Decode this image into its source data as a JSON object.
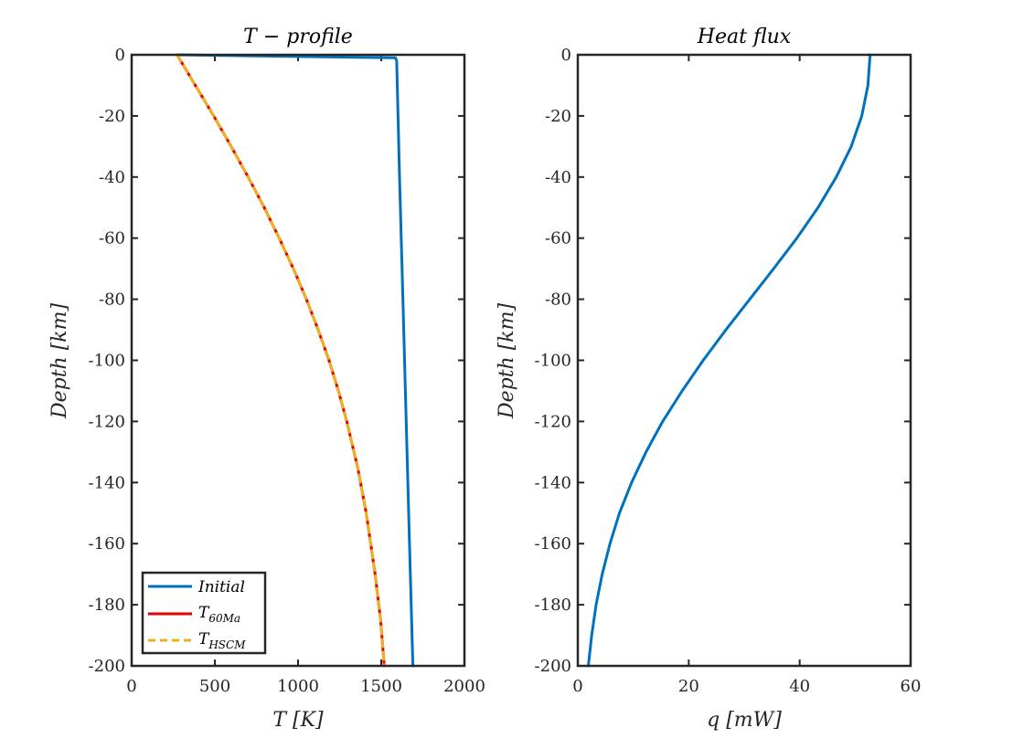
{
  "chart_data": [
    {
      "type": "line",
      "title": "T − profile",
      "xlabel": "T [K]",
      "ylabel": "Depth [km]",
      "xlim": [
        0,
        2000
      ],
      "ylim": [
        -200,
        0
      ],
      "xticks": [
        "0",
        "500",
        "1000",
        "1500",
        "2000"
      ],
      "yticks": [
        "0",
        "-20",
        "-40",
        "-60",
        "-80",
        "-100",
        "-120",
        "-140",
        "-160",
        "-180",
        "-200"
      ],
      "grid": false,
      "legend_position": "bottom-left",
      "series": [
        {
          "name": "Initial",
          "color": "#0072BD",
          "dash": "solid",
          "points": [
            [
              273,
              0
            ],
            [
              1585,
              -1
            ],
            [
              1593,
              -2
            ],
            [
              1610,
              -40
            ],
            [
              1630,
              -80
            ],
            [
              1650,
              -120
            ],
            [
              1670,
              -160
            ],
            [
              1690,
              -200
            ]
          ]
        },
        {
          "name": "T60Ma",
          "name_base": "T",
          "name_sub": "60Ma",
          "color": "#E00000",
          "dash": "solid",
          "points": [
            [
              273,
              0
            ],
            [
              383,
              -10
            ],
            [
              493,
              -20
            ],
            [
              598,
              -30
            ],
            [
              700,
              -40
            ],
            [
              797,
              -50
            ],
            [
              887,
              -60
            ],
            [
              972,
              -70
            ],
            [
              1050,
              -80
            ],
            [
              1121,
              -90
            ],
            [
              1186,
              -100
            ],
            [
              1243,
              -110
            ],
            [
              1293,
              -120
            ],
            [
              1358,
              -135
            ],
            [
              1410,
              -150
            ],
            [
              1463,
              -170
            ],
            [
              1496,
              -185
            ],
            [
              1518,
              -200
            ]
          ]
        },
        {
          "name": "THSCM",
          "name_base": "T",
          "name_sub": "HSCM",
          "color": "#EDB120",
          "dash": "dashed",
          "points": [
            [
              273,
              0
            ],
            [
              383,
              -10
            ],
            [
              493,
              -20
            ],
            [
              598,
              -30
            ],
            [
              700,
              -40
            ],
            [
              797,
              -50
            ],
            [
              887,
              -60
            ],
            [
              972,
              -70
            ],
            [
              1050,
              -80
            ],
            [
              1121,
              -90
            ],
            [
              1186,
              -100
            ],
            [
              1243,
              -110
            ],
            [
              1293,
              -120
            ],
            [
              1358,
              -135
            ],
            [
              1410,
              -150
            ],
            [
              1463,
              -170
            ],
            [
              1496,
              -185
            ],
            [
              1518,
              -200
            ]
          ]
        }
      ]
    },
    {
      "type": "line",
      "title": "Heat flux",
      "xlabel": "q [mW]",
      "ylabel": "Depth [km]",
      "xlim": [
        0,
        60
      ],
      "ylim": [
        -200,
        0
      ],
      "xticks": [
        "0",
        "20",
        "40",
        "60"
      ],
      "yticks": [
        "0",
        "-20",
        "-40",
        "-60",
        "-80",
        "-100",
        "-120",
        "-140",
        "-160",
        "-180",
        "-200"
      ],
      "grid": false,
      "series": [
        {
          "color": "#0072BD",
          "dash": "solid",
          "points": [
            [
              52.7,
              0
            ],
            [
              52.3,
              -10
            ],
            [
              51.2,
              -20
            ],
            [
              49.3,
              -30
            ],
            [
              46.6,
              -40
            ],
            [
              43.3,
              -50
            ],
            [
              39.5,
              -60
            ],
            [
              35.3,
              -70
            ],
            [
              31.0,
              -80
            ],
            [
              26.7,
              -90
            ],
            [
              22.6,
              -100
            ],
            [
              18.8,
              -110
            ],
            [
              15.3,
              -120
            ],
            [
              12.3,
              -130
            ],
            [
              9.7,
              -140
            ],
            [
              7.5,
              -150
            ],
            [
              5.8,
              -160
            ],
            [
              4.4,
              -170
            ],
            [
              3.3,
              -180
            ],
            [
              2.5,
              -190
            ],
            [
              1.9,
              -200
            ]
          ]
        }
      ]
    }
  ]
}
